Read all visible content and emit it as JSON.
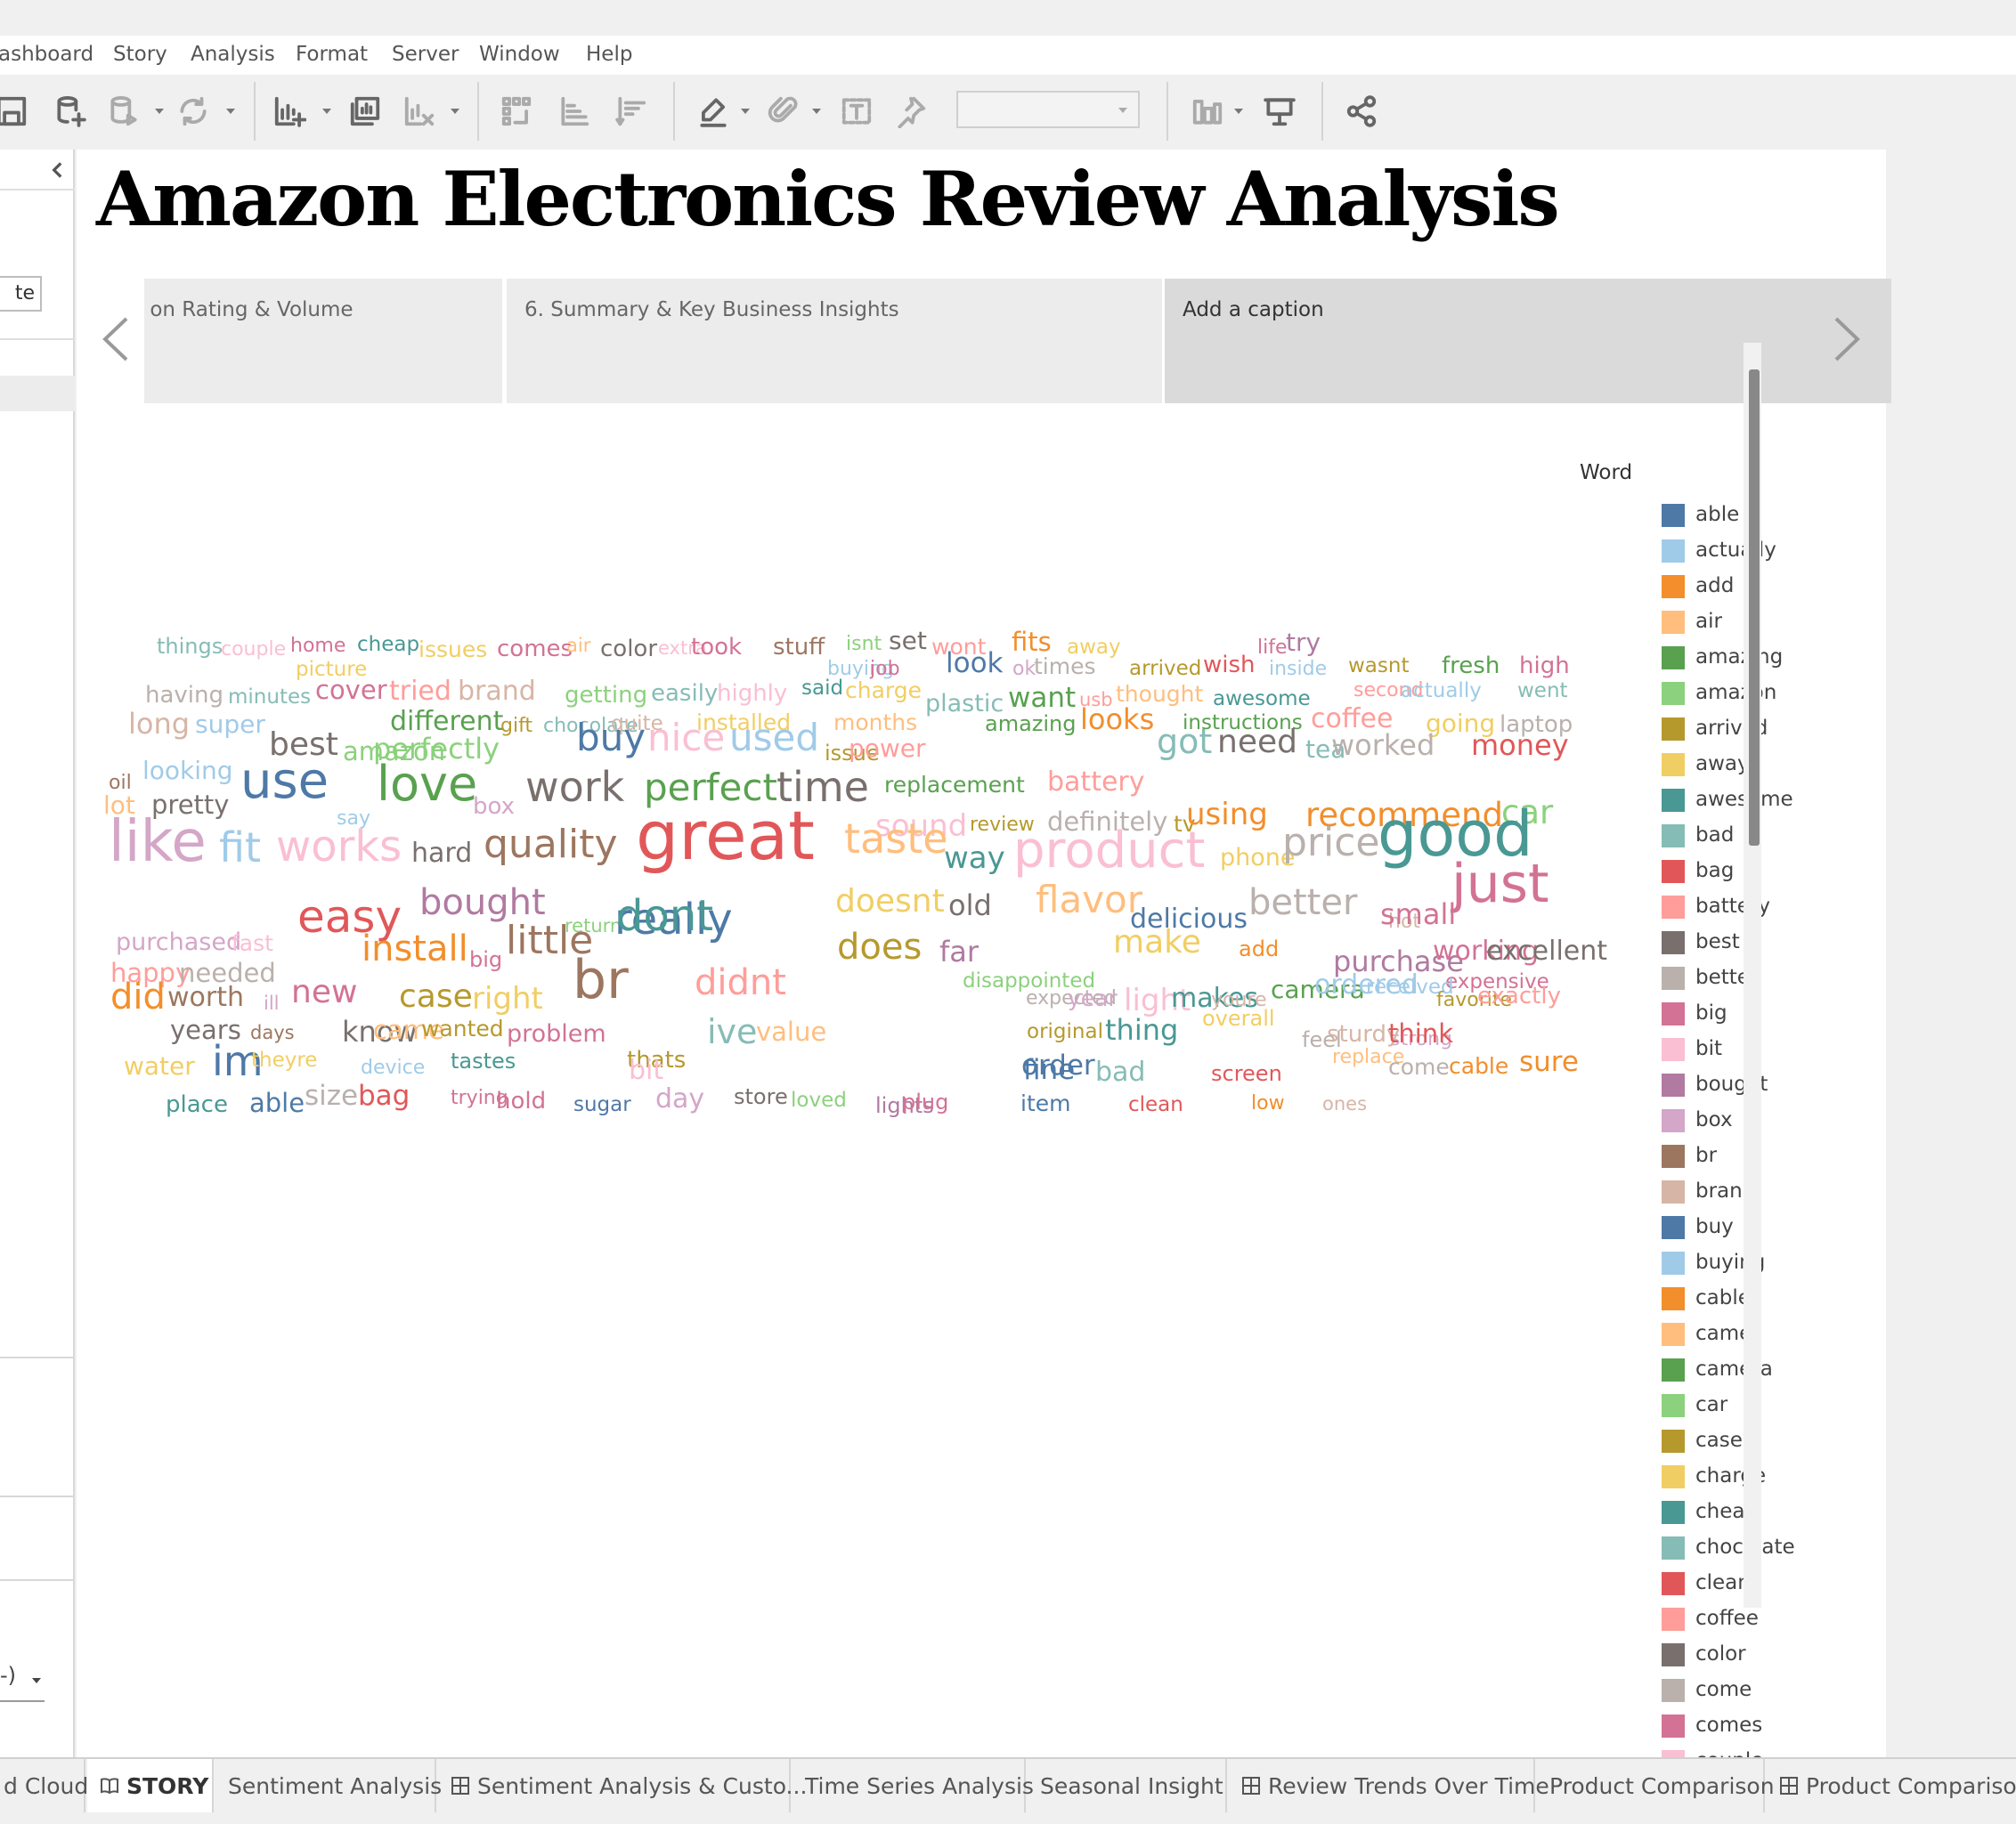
{
  "menu": [
    "ashboard",
    "Story",
    "Analysis",
    "Format",
    "Server",
    "Window",
    "Help"
  ],
  "sidebar": {
    "input_value": "te",
    "select_value": "-)"
  },
  "story": {
    "title": "Amazon Electronics Review Analysis",
    "points": [
      {
        "label": "t on Rating & Volume",
        "active": false
      },
      {
        "label": "6. Summary & Key Business Insights",
        "active": false
      },
      {
        "label": "Add a caption",
        "active": true
      }
    ]
  },
  "word_cloud": {
    "words": [
      {
        "t": "things",
        "c": "#86bcb6",
        "s": 24
      },
      {
        "t": "couple",
        "c": "#fabfd2",
        "s": 22
      },
      {
        "t": "home",
        "c": "#d37295",
        "s": 22
      },
      {
        "t": "cheap",
        "c": "#499894",
        "s": 23
      },
      {
        "t": "issues",
        "c": "#f1ce63",
        "s": 25
      },
      {
        "t": "comes",
        "c": "#d37295",
        "s": 26
      },
      {
        "t": "air",
        "c": "#ffbe7d",
        "s": 21
      },
      {
        "t": "color",
        "c": "#79706e",
        "s": 26
      },
      {
        "t": "extra",
        "c": "#fabfd2",
        "s": 21
      },
      {
        "t": "took",
        "c": "#d37295",
        "s": 26
      },
      {
        "t": "stuff",
        "c": "#9d7660",
        "s": 26
      },
      {
        "t": "isnt",
        "c": "#8cd17d",
        "s": 22
      },
      {
        "t": "set",
        "c": "#79706e",
        "s": 28
      },
      {
        "t": "wont",
        "c": "#ff9d9a",
        "s": 25
      },
      {
        "t": "fits",
        "c": "#f28e2b",
        "s": 29
      },
      {
        "t": "away",
        "c": "#f1ce63",
        "s": 23
      },
      {
        "t": "life",
        "c": "#d37295",
        "s": 22
      },
      {
        "t": "try",
        "c": "#b07aa1",
        "s": 28
      },
      {
        "t": "picture",
        "c": "#f1ce63",
        "s": 23
      },
      {
        "t": "buying",
        "c": "#a0cbe8",
        "s": 22
      },
      {
        "t": "job",
        "c": "#d37295",
        "s": 22
      },
      {
        "t": "look",
        "c": "#4e79a7",
        "s": 31
      },
      {
        "t": "ok",
        "c": "#d4a6c8",
        "s": 22
      },
      {
        "t": "times",
        "c": "#bab0ac",
        "s": 25
      },
      {
        "t": "arrived",
        "c": "#b6992d",
        "s": 23
      },
      {
        "t": "wish",
        "c": "#e15759",
        "s": 26
      },
      {
        "t": "inside",
        "c": "#a0cbe8",
        "s": 22
      },
      {
        "t": "wasnt",
        "c": "#b6992d",
        "s": 23
      },
      {
        "t": "fresh",
        "c": "#59a14f",
        "s": 26
      },
      {
        "t": "high",
        "c": "#d37295",
        "s": 26
      },
      {
        "t": "having",
        "c": "#bab0ac",
        "s": 26
      },
      {
        "t": "minutes",
        "c": "#86bcb6",
        "s": 23
      },
      {
        "t": "cover",
        "c": "#d37295",
        "s": 29
      },
      {
        "t": "tried",
        "c": "#ff9d9a",
        "s": 30
      },
      {
        "t": "brand",
        "c": "#d7b5a6",
        "s": 30
      },
      {
        "t": "getting",
        "c": "#8cd17d",
        "s": 26
      },
      {
        "t": "easily",
        "c": "#86bcb6",
        "s": 26
      },
      {
        "t": "highly",
        "c": "#fabfd2",
        "s": 26
      },
      {
        "t": "said",
        "c": "#499894",
        "s": 23
      },
      {
        "t": "charge",
        "c": "#f1ce63",
        "s": 25
      },
      {
        "t": "plastic",
        "c": "#86bcb6",
        "s": 27
      },
      {
        "t": "want",
        "c": "#59a14f",
        "s": 31
      },
      {
        "t": "usb",
        "c": "#ff9d9a",
        "s": 21
      },
      {
        "t": "thought",
        "c": "#ffbe7d",
        "s": 25
      },
      {
        "t": "awesome",
        "c": "#499894",
        "s": 23
      },
      {
        "t": "second",
        "c": "#ff9d9a",
        "s": 22
      },
      {
        "t": "actually",
        "c": "#a0cbe8",
        "s": 23
      },
      {
        "t": "went",
        "c": "#86bcb6",
        "s": 23
      },
      {
        "t": "different",
        "c": "#59a14f",
        "s": 30
      },
      {
        "t": "gift",
        "c": "#b6992d",
        "s": 22
      },
      {
        "t": "chocolate",
        "c": "#86bcb6",
        "s": 22
      },
      {
        "t": "quite",
        "c": "#d7b5a6",
        "s": 23
      },
      {
        "t": "installed",
        "c": "#f1ce63",
        "s": 25
      },
      {
        "t": "months",
        "c": "#ffbe7d",
        "s": 25
      },
      {
        "t": "long",
        "c": "#d7b5a6",
        "s": 32
      },
      {
        "t": "super",
        "c": "#a0cbe8",
        "s": 28
      },
      {
        "t": "amazing",
        "c": "#59a14f",
        "s": 24
      },
      {
        "t": "looks",
        "c": "#f28e2b",
        "s": 32
      },
      {
        "t": "instructions",
        "c": "#59a14f",
        "s": 23
      },
      {
        "t": "coffee",
        "c": "#ff9d9a",
        "s": 30
      },
      {
        "t": "going",
        "c": "#f1ce63",
        "s": 28
      },
      {
        "t": "laptop",
        "c": "#bab0ac",
        "s": 26
      },
      {
        "t": "best",
        "c": "#79706e",
        "s": 36
      },
      {
        "t": "amazon",
        "c": "#8cd17d",
        "s": 29
      },
      {
        "t": "perfectly",
        "c": "#8cd17d",
        "s": 32
      },
      {
        "t": "buy",
        "c": "#4e79a7",
        "s": 42
      },
      {
        "t": "nice",
        "c": "#fabfd2",
        "s": 42
      },
      {
        "t": "used",
        "c": "#a0cbe8",
        "s": 42
      },
      {
        "t": "issue",
        "c": "#b6992d",
        "s": 24
      },
      {
        "t": "power",
        "c": "#ff9d9a",
        "s": 28
      },
      {
        "t": "got",
        "c": "#86bcb6",
        "s": 38
      },
      {
        "t": "need",
        "c": "#79706e",
        "s": 36
      },
      {
        "t": "tea",
        "c": "#86bcb6",
        "s": 28
      },
      {
        "t": "worked",
        "c": "#bab0ac",
        "s": 32
      },
      {
        "t": "money",
        "c": "#e15759",
        "s": 32
      },
      {
        "t": "oil",
        "c": "#9d7660",
        "s": 22
      },
      {
        "t": "looking",
        "c": "#a0cbe8",
        "s": 28
      },
      {
        "t": "replacement",
        "c": "#59a14f",
        "s": 25
      },
      {
        "t": "battery",
        "c": "#ff9d9a",
        "s": 30
      },
      {
        "t": "lot",
        "c": "#ffbe7d",
        "s": 28
      },
      {
        "t": "pretty",
        "c": "#79706e",
        "s": 29
      },
      {
        "t": "use",
        "c": "#4e79a7",
        "s": 56
      },
      {
        "t": "say",
        "c": "#a0cbe8",
        "s": 22
      },
      {
        "t": "love",
        "c": "#59a14f",
        "s": 54
      },
      {
        "t": "box",
        "c": "#d4a6c8",
        "s": 26
      },
      {
        "t": "work",
        "c": "#79706e",
        "s": 46
      },
      {
        "t": "perfect",
        "c": "#59a14f",
        "s": 42
      },
      {
        "t": "time",
        "c": "#79706e",
        "s": 46
      },
      {
        "t": "sound",
        "c": "#fabfd2",
        "s": 34
      },
      {
        "t": "review",
        "c": "#b6992d",
        "s": 22
      },
      {
        "t": "definitely",
        "c": "#bab0ac",
        "s": 29
      },
      {
        "t": "tv",
        "c": "#b6992d",
        "s": 25
      },
      {
        "t": "using",
        "c": "#f28e2b",
        "s": 34
      },
      {
        "t": "recommend",
        "c": "#f28e2b",
        "s": 37
      },
      {
        "t": "car",
        "c": "#8cd17d",
        "s": 37
      },
      {
        "t": "like",
        "c": "#d4a6c8",
        "s": 64
      },
      {
        "t": "fit",
        "c": "#a0cbe8",
        "s": 46
      },
      {
        "t": "works",
        "c": "#fabfd2",
        "s": 48
      },
      {
        "t": "hard",
        "c": "#79706e",
        "s": 30
      },
      {
        "t": "quality",
        "c": "#9d7660",
        "s": 44
      },
      {
        "t": "great",
        "c": "#e15759",
        "s": 76
      },
      {
        "t": "taste",
        "c": "#ffbe7d",
        "s": 46
      },
      {
        "t": "way",
        "c": "#499894",
        "s": 34
      },
      {
        "t": "product",
        "c": "#fabfd2",
        "s": 56
      },
      {
        "t": "phone",
        "c": "#f1ce63",
        "s": 27
      },
      {
        "t": "price",
        "c": "#bab0ac",
        "s": 44
      },
      {
        "t": "good",
        "c": "#499894",
        "s": 70
      },
      {
        "t": "return",
        "c": "#8cd17d",
        "s": 21
      },
      {
        "t": "bought",
        "c": "#b07aa1",
        "s": 40
      },
      {
        "t": "doesnt",
        "c": "#f1ce63",
        "s": 36
      },
      {
        "t": "old",
        "c": "#79706e",
        "s": 32
      },
      {
        "t": "flavor",
        "c": "#ffbe7d",
        "s": 42
      },
      {
        "t": "delicious",
        "c": "#4e79a7",
        "s": 30
      },
      {
        "t": "better",
        "c": "#bab0ac",
        "s": 40
      },
      {
        "t": "hot",
        "c": "#d7b5a6",
        "s": 22
      },
      {
        "t": "small",
        "c": "#d37295",
        "s": 32
      },
      {
        "t": "just",
        "c": "#d37295",
        "s": 60
      },
      {
        "t": "purchased",
        "c": "#d4a6c8",
        "s": 27
      },
      {
        "t": "fast",
        "c": "#fabfd2",
        "s": 25
      },
      {
        "t": "easy",
        "c": "#e15759",
        "s": 50
      },
      {
        "t": "really",
        "c": "#4e79a7",
        "s": 48
      },
      {
        "t": "dont",
        "c": "#499894",
        "s": 48
      },
      {
        "t": "happy",
        "c": "#ff9d9a",
        "s": 29
      },
      {
        "t": "needed",
        "c": "#bab0ac",
        "s": 29
      },
      {
        "t": "install",
        "c": "#f28e2b",
        "s": 40
      },
      {
        "t": "big",
        "c": "#d37295",
        "s": 24
      },
      {
        "t": "little",
        "c": "#9d7660",
        "s": 44
      },
      {
        "t": "does",
        "c": "#b6992d",
        "s": 40
      },
      {
        "t": "far",
        "c": "#b07aa1",
        "s": 32
      },
      {
        "t": "disappointed",
        "c": "#8cd17d",
        "s": 23
      },
      {
        "t": "make",
        "c": "#f1ce63",
        "s": 36
      },
      {
        "t": "add",
        "c": "#f28e2b",
        "s": 24
      },
      {
        "t": "purchase",
        "c": "#b07aa1",
        "s": 32
      },
      {
        "t": "working",
        "c": "#d37295",
        "s": 30
      },
      {
        "t": "excellent",
        "c": "#79706e",
        "s": 30
      },
      {
        "t": "expensive",
        "c": "#d37295",
        "s": 23
      },
      {
        "t": "did",
        "c": "#f28e2b",
        "s": 40
      },
      {
        "t": "worth",
        "c": "#9d7660",
        "s": 30
      },
      {
        "t": "ill",
        "c": "#d4a6c8",
        "s": 21
      },
      {
        "t": "new",
        "c": "#d37295",
        "s": 36
      },
      {
        "t": "case",
        "c": "#b6992d",
        "s": 36
      },
      {
        "t": "right",
        "c": "#f1ce63",
        "s": 34
      },
      {
        "t": "br",
        "c": "#9d7660",
        "s": 60
      },
      {
        "t": "didnt",
        "c": "#ff9d9a",
        "s": 40
      },
      {
        "t": "expected",
        "c": "#bab0ac",
        "s": 22
      },
      {
        "t": "year",
        "c": "#d4a6c8",
        "s": 25
      },
      {
        "t": "light",
        "c": "#fabfd2",
        "s": 34
      },
      {
        "t": "makes",
        "c": "#499894",
        "s": 30
      },
      {
        "t": "youre",
        "c": "#d7b5a6",
        "s": 22
      },
      {
        "t": "camera",
        "c": "#59a14f",
        "s": 28
      },
      {
        "t": "ordered",
        "c": "#a0cbe8",
        "s": 30
      },
      {
        "t": "received",
        "c": "#a0cbe8",
        "s": 23
      },
      {
        "t": "favorite",
        "c": "#b6992d",
        "s": 22
      },
      {
        "t": "exactly",
        "c": "#ff9d9a",
        "s": 26
      },
      {
        "t": "years",
        "c": "#79706e",
        "s": 29
      },
      {
        "t": "days",
        "c": "#9d7660",
        "s": 21
      },
      {
        "t": "know",
        "c": "#79706e",
        "s": 32
      },
      {
        "t": "came",
        "c": "#ffbe7d",
        "s": 29
      },
      {
        "t": "wanted",
        "c": "#b6992d",
        "s": 25
      },
      {
        "t": "problem",
        "c": "#d37295",
        "s": 27
      },
      {
        "t": "ive",
        "c": "#86bcb6",
        "s": 38
      },
      {
        "t": "value",
        "c": "#ffbe7d",
        "s": 29
      },
      {
        "t": "original",
        "c": "#b6992d",
        "s": 23
      },
      {
        "t": "thing",
        "c": "#499894",
        "s": 32
      },
      {
        "t": "overall",
        "c": "#f1ce63",
        "s": 24
      },
      {
        "t": "strong",
        "c": "#d4a6c8",
        "s": 22
      },
      {
        "t": "feel",
        "c": "#bab0ac",
        "s": 24
      },
      {
        "t": "sturdy",
        "c": "#d7b5a6",
        "s": 26
      },
      {
        "t": "think",
        "c": "#e15759",
        "s": 29
      },
      {
        "t": "water",
        "c": "#f1ce63",
        "s": 28
      },
      {
        "t": "im",
        "c": "#4e79a7",
        "s": 46
      },
      {
        "t": "theyre",
        "c": "#f1ce63",
        "s": 23
      },
      {
        "t": "device",
        "c": "#a0cbe8",
        "s": 22
      },
      {
        "t": "tastes",
        "c": "#499894",
        "s": 24
      },
      {
        "t": "thats",
        "c": "#b6992d",
        "s": 26
      },
      {
        "t": "bit",
        "c": "#fabfd2",
        "s": 30
      },
      {
        "t": "screen",
        "c": "#e15759",
        "s": 24
      },
      {
        "t": "replace",
        "c": "#ffbe7d",
        "s": 22
      },
      {
        "t": "come",
        "c": "#bab0ac",
        "s": 25
      },
      {
        "t": "cable",
        "c": "#f28e2b",
        "s": 25
      },
      {
        "t": "sure",
        "c": "#f28e2b",
        "s": 31
      },
      {
        "t": "order",
        "c": "#4e79a7",
        "s": 31
      },
      {
        "t": "fine",
        "c": "#4e79a7",
        "s": 31
      },
      {
        "t": "bad",
        "c": "#86bcb6",
        "s": 30
      },
      {
        "t": "place",
        "c": "#499894",
        "s": 26
      },
      {
        "t": "able",
        "c": "#4e79a7",
        "s": 29
      },
      {
        "t": "size",
        "c": "#bab0ac",
        "s": 31
      },
      {
        "t": "bag",
        "c": "#e15759",
        "s": 31
      },
      {
        "t": "trying",
        "c": "#d37295",
        "s": 22
      },
      {
        "t": "hold",
        "c": "#d37295",
        "s": 26
      },
      {
        "t": "sugar",
        "c": "#4e79a7",
        "s": 23
      },
      {
        "t": "day",
        "c": "#d4a6c8",
        "s": 30
      },
      {
        "t": "store",
        "c": "#79706e",
        "s": 24
      },
      {
        "t": "loved",
        "c": "#8cd17d",
        "s": 23
      },
      {
        "t": "lights",
        "c": "#b07aa1",
        "s": 24
      },
      {
        "t": "plug",
        "c": "#d37295",
        "s": 24
      },
      {
        "t": "item",
        "c": "#4e79a7",
        "s": 25
      },
      {
        "t": "clean",
        "c": "#e15759",
        "s": 23
      },
      {
        "t": "low",
        "c": "#f28e2b",
        "s": 22
      },
      {
        "t": "ones",
        "c": "#d7b5a6",
        "s": 21
      }
    ]
  },
  "legend": {
    "title": "Word",
    "items": [
      {
        "label": "able",
        "color": "#4e79a7"
      },
      {
        "label": "actually",
        "color": "#a0cbe8"
      },
      {
        "label": "add",
        "color": "#f28e2b"
      },
      {
        "label": "air",
        "color": "#ffbe7d"
      },
      {
        "label": "amazing",
        "color": "#59a14f"
      },
      {
        "label": "amazon",
        "color": "#8cd17d"
      },
      {
        "label": "arrived",
        "color": "#b6992d"
      },
      {
        "label": "away",
        "color": "#f1ce63"
      },
      {
        "label": "awesome",
        "color": "#499894"
      },
      {
        "label": "bad",
        "color": "#86bcb6"
      },
      {
        "label": "bag",
        "color": "#e15759"
      },
      {
        "label": "battery",
        "color": "#ff9d9a"
      },
      {
        "label": "best",
        "color": "#79706e"
      },
      {
        "label": "better",
        "color": "#bab0ac"
      },
      {
        "label": "big",
        "color": "#d37295"
      },
      {
        "label": "bit",
        "color": "#fabfd2"
      },
      {
        "label": "bought",
        "color": "#b07aa1"
      },
      {
        "label": "box",
        "color": "#d4a6c8"
      },
      {
        "label": "br",
        "color": "#9d7660"
      },
      {
        "label": "brand",
        "color": "#d7b5a6"
      },
      {
        "label": "buy",
        "color": "#4e79a7"
      },
      {
        "label": "buying",
        "color": "#a0cbe8"
      },
      {
        "label": "cable",
        "color": "#f28e2b"
      },
      {
        "label": "came",
        "color": "#ffbe7d"
      },
      {
        "label": "camera",
        "color": "#59a14f"
      },
      {
        "label": "car",
        "color": "#8cd17d"
      },
      {
        "label": "case",
        "color": "#b6992d"
      },
      {
        "label": "charge",
        "color": "#f1ce63"
      },
      {
        "label": "cheap",
        "color": "#499894"
      },
      {
        "label": "chocolate",
        "color": "#86bcb6"
      },
      {
        "label": "clean",
        "color": "#e15759"
      },
      {
        "label": "coffee",
        "color": "#ff9d9a"
      },
      {
        "label": "color",
        "color": "#79706e"
      },
      {
        "label": "come",
        "color": "#bab0ac"
      },
      {
        "label": "comes",
        "color": "#d37295"
      },
      {
        "label": "couple",
        "color": "#fabfd2"
      }
    ]
  },
  "tabs": [
    {
      "label": "d Cloud",
      "icon": "",
      "active": false
    },
    {
      "label": "STORY",
      "icon": "book-icon",
      "active": true
    },
    {
      "label": "Sentiment Analysis",
      "icon": "",
      "active": false
    },
    {
      "label": "Sentiment Analysis & Custo...",
      "icon": "dashboard-grid-icon",
      "active": false
    },
    {
      "label": "Time Series Analysis",
      "icon": "",
      "active": false
    },
    {
      "label": "Seasonal Insight",
      "icon": "",
      "active": false
    },
    {
      "label": "Review Trends Over Time",
      "icon": "dashboard-grid-icon",
      "active": false
    },
    {
      "label": "Product Comparison",
      "icon": "",
      "active": false
    },
    {
      "label": "Product Comparison",
      "icon": "dashboard-grid-icon",
      "active": false
    }
  ]
}
